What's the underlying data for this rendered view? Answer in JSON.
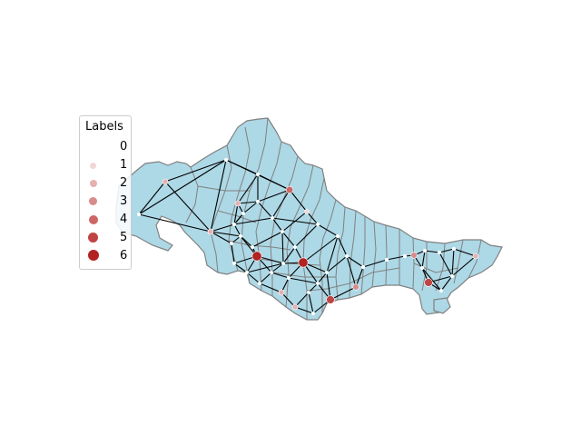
{
  "map": {
    "region_fill": "#add8e6",
    "border_color": "#808080",
    "edge_color": "#000000"
  },
  "legend": {
    "title": "Labels",
    "items": [
      {
        "label": "0",
        "color": "#ffffff"
      },
      {
        "label": "1",
        "color": "#f2d6d6"
      },
      {
        "label": "2",
        "color": "#e6b0b0"
      },
      {
        "label": "3",
        "color": "#d98c8c"
      },
      {
        "label": "4",
        "color": "#cd6666"
      },
      {
        "label": "5",
        "color": "#c04444"
      },
      {
        "label": "6",
        "color": "#b22222"
      }
    ]
  }
}
